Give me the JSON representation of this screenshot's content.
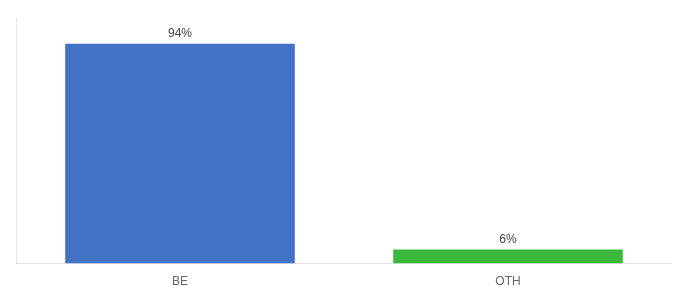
{
  "chart_data": {
    "type": "bar",
    "categories": [
      "BE",
      "OTH"
    ],
    "values": [
      94,
      6
    ],
    "value_labels": [
      "94%",
      "6%"
    ],
    "colors": [
      "#4472c4",
      "#3cb83c"
    ],
    "ylim": [
      0,
      105
    ],
    "data_labels": true,
    "tick_labels": "x",
    "grid": false
  }
}
